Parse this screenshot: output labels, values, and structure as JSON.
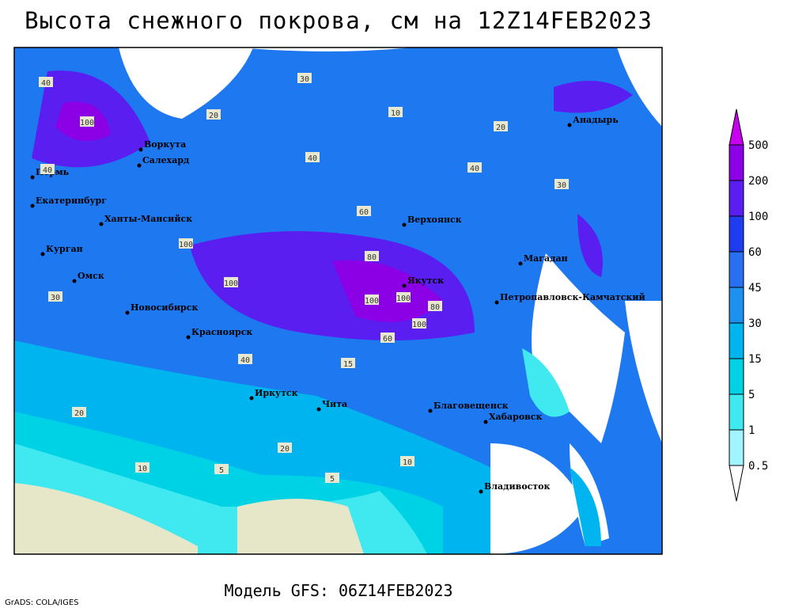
{
  "header": {
    "title": "Высота снежного покрова, см на 12Z14FEB2023"
  },
  "footer": {
    "model": "Модель GFS: 06Z14FEB2023",
    "credit": "GrADS: COLA/IGES"
  },
  "colorbar": {
    "levels": [
      0.5,
      1,
      5,
      15,
      30,
      45,
      60,
      100,
      200,
      500
    ],
    "colors": [
      "#ffffff",
      "#a0f5ff",
      "#40e8f0",
      "#00d2e6",
      "#00b4f0",
      "#1e90f0",
      "#2870f0",
      "#1e3cf0",
      "#5a1ef0",
      "#8c00e6",
      "#c800f0"
    ]
  },
  "cities": [
    "Воркута",
    "Салехард",
    "Пермь",
    "Екатеринбург",
    "Ханты-Мансийск",
    "Курган",
    "Омск",
    "Новосибирск",
    "Красноярск",
    "Иркутск",
    "Чита",
    "Благовещенск",
    "Хабаровск",
    "Владивосток",
    "Якутск",
    "Верхоянск",
    "Магадан",
    "Петропавловск-Камчатский",
    "Анадырь"
  ],
  "contour_labels": [
    "40",
    "30",
    "20",
    "100",
    "40",
    "40",
    "60",
    "100",
    "100",
    "80",
    "100",
    "100",
    "60",
    "40",
    "30",
    "20",
    "10",
    "5",
    "20",
    "10",
    "5",
    "10",
    "40",
    "30",
    "20",
    "15",
    "100",
    "80"
  ]
}
